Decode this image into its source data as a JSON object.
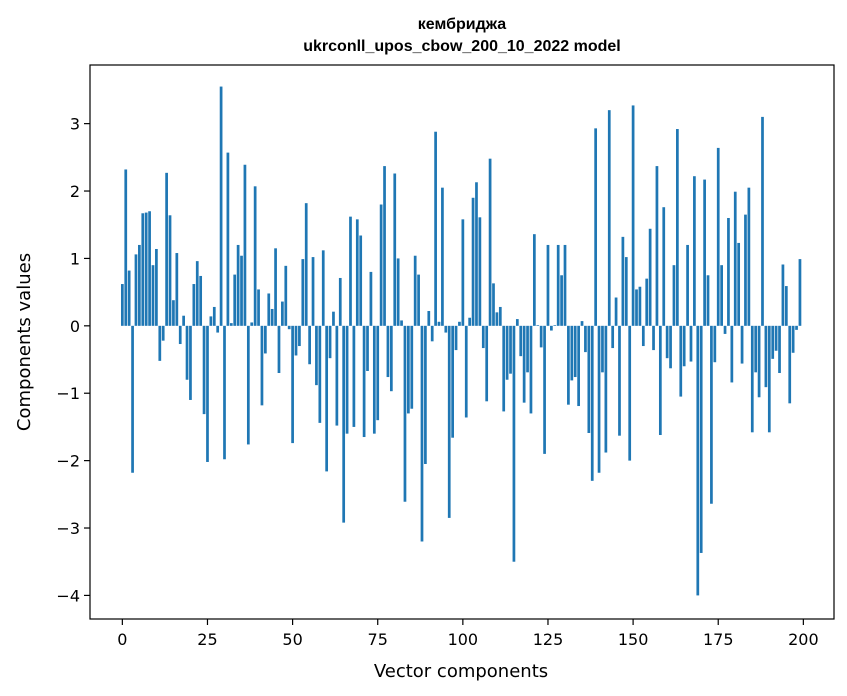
{
  "chart_data": {
    "type": "bar",
    "title": "кембриджа",
    "subtitle": "ukrconll_upos_cbow_200_10_2022 model",
    "xlabel": "Vector components",
    "ylabel": "Components values",
    "xlim": [
      -9.5,
      209
    ],
    "ylim": [
      -4.35,
      3.87
    ],
    "xticks": [
      0,
      25,
      50,
      75,
      100,
      125,
      150,
      175,
      200
    ],
    "yticks": [
      -4,
      -3,
      -2,
      -1,
      0,
      1,
      2,
      3
    ],
    "bar_color": "#1f77b4",
    "grid": false,
    "legend": "none",
    "x": [
      0,
      1,
      2,
      3,
      4,
      5,
      6,
      7,
      8,
      9,
      10,
      11,
      12,
      13,
      14,
      15,
      16,
      17,
      18,
      19,
      20,
      21,
      22,
      23,
      24,
      25,
      26,
      27,
      28,
      29,
      30,
      31,
      32,
      33,
      34,
      35,
      36,
      37,
      38,
      39,
      40,
      41,
      42,
      43,
      44,
      45,
      46,
      47,
      48,
      49,
      50,
      51,
      52,
      53,
      54,
      55,
      56,
      57,
      58,
      59,
      60,
      61,
      62,
      63,
      64,
      65,
      66,
      67,
      68,
      69,
      70,
      71,
      72,
      73,
      74,
      75,
      76,
      77,
      78,
      79,
      80,
      81,
      82,
      83,
      84,
      85,
      86,
      87,
      88,
      89,
      90,
      91,
      92,
      93,
      94,
      95,
      96,
      97,
      98,
      99,
      100,
      101,
      102,
      103,
      104,
      105,
      106,
      107,
      108,
      109,
      110,
      111,
      112,
      113,
      114,
      115,
      116,
      117,
      118,
      119,
      120,
      121,
      122,
      123,
      124,
      125,
      126,
      127,
      128,
      129,
      130,
      131,
      132,
      133,
      134,
      135,
      136,
      137,
      138,
      139,
      140,
      141,
      142,
      143,
      144,
      145,
      146,
      147,
      148,
      149,
      150,
      151,
      152,
      153,
      154,
      155,
      156,
      157,
      158,
      159,
      160,
      161,
      162,
      163,
      164,
      165,
      166,
      167,
      168,
      169,
      170,
      171,
      172,
      173,
      174,
      175,
      176,
      177,
      178,
      179,
      180,
      181,
      182,
      183,
      184,
      185,
      186,
      187,
      188,
      189,
      190,
      191,
      192,
      193,
      194,
      195,
      196,
      197,
      198,
      199
    ],
    "values": [
      0.62,
      2.32,
      0.82,
      -2.18,
      1.06,
      1.2,
      1.67,
      1.68,
      1.7,
      0.9,
      1.14,
      -0.52,
      -0.22,
      2.27,
      1.64,
      0.38,
      1.08,
      -0.27,
      0.15,
      -0.8,
      -1.1,
      0.62,
      0.96,
      0.74,
      -1.31,
      -2.02,
      0.14,
      0.28,
      -0.1,
      3.55,
      -1.98,
      2.57,
      0.04,
      0.76,
      1.2,
      1.04,
      2.39,
      -1.76,
      0.05,
      2.07,
      0.54,
      -1.18,
      -0.41,
      0.48,
      0.25,
      1.15,
      -0.7,
      0.36,
      0.89,
      -0.05,
      -1.74,
      -0.44,
      -0.3,
      0.99,
      1.82,
      -0.57,
      1.02,
      -0.88,
      -1.44,
      1.12,
      -2.16,
      -0.48,
      0.21,
      -1.48,
      0.71,
      -2.92,
      -1.6,
      1.62,
      -1.5,
      1.58,
      1.34,
      -1.65,
      -0.67,
      0.8,
      -1.6,
      -1.4,
      1.8,
      2.37,
      -0.76,
      -0.97,
      2.26,
      1.0,
      0.08,
      -2.61,
      -1.3,
      -1.23,
      1.04,
      0.76,
      -3.2,
      -2.05,
      0.22,
      -0.23,
      2.88,
      0.06,
      2.05,
      -0.1,
      -2.85,
      -1.66,
      -0.36,
      0.06,
      1.58,
      -1.36,
      0.12,
      1.9,
      2.13,
      1.61,
      -0.33,
      -1.12,
      2.48,
      0.63,
      0.2,
      0.28,
      -1.27,
      -0.8,
      -0.71,
      -3.5,
      0.1,
      -0.45,
      -1.14,
      -0.69,
      -1.3,
      1.36,
      0.01,
      -0.32,
      -1.9,
      1.2,
      -0.07,
      0.01,
      1.2,
      0.75,
      1.2,
      -1.17,
      -0.81,
      -0.76,
      -1.19,
      0.07,
      -0.39,
      -1.59,
      -2.3,
      2.93,
      -2.18,
      -0.69,
      -1.88,
      3.2,
      -0.33,
      0.42,
      -1.63,
      1.32,
      1.02,
      -2.0,
      3.27,
      0.54,
      0.58,
      -0.3,
      0.7,
      1.44,
      -0.36,
      2.37,
      -1.62,
      1.76,
      -0.48,
      -0.63,
      0.9,
      2.92,
      -1.05,
      -0.6,
      1.2,
      -0.53,
      2.22,
      -4.0,
      -3.37,
      2.17,
      0.75,
      -2.64,
      -0.54,
      2.64,
      0.9,
      -0.12,
      1.6,
      -0.84,
      1.99,
      1.23,
      -0.56,
      1.65,
      2.05,
      -1.58,
      -0.69,
      -1.06,
      3.1,
      -0.91,
      -1.58,
      -0.49,
      -0.37,
      -0.7,
      0.91,
      0.59,
      -1.15,
      -0.4,
      -0.06,
      0.99
    ]
  }
}
